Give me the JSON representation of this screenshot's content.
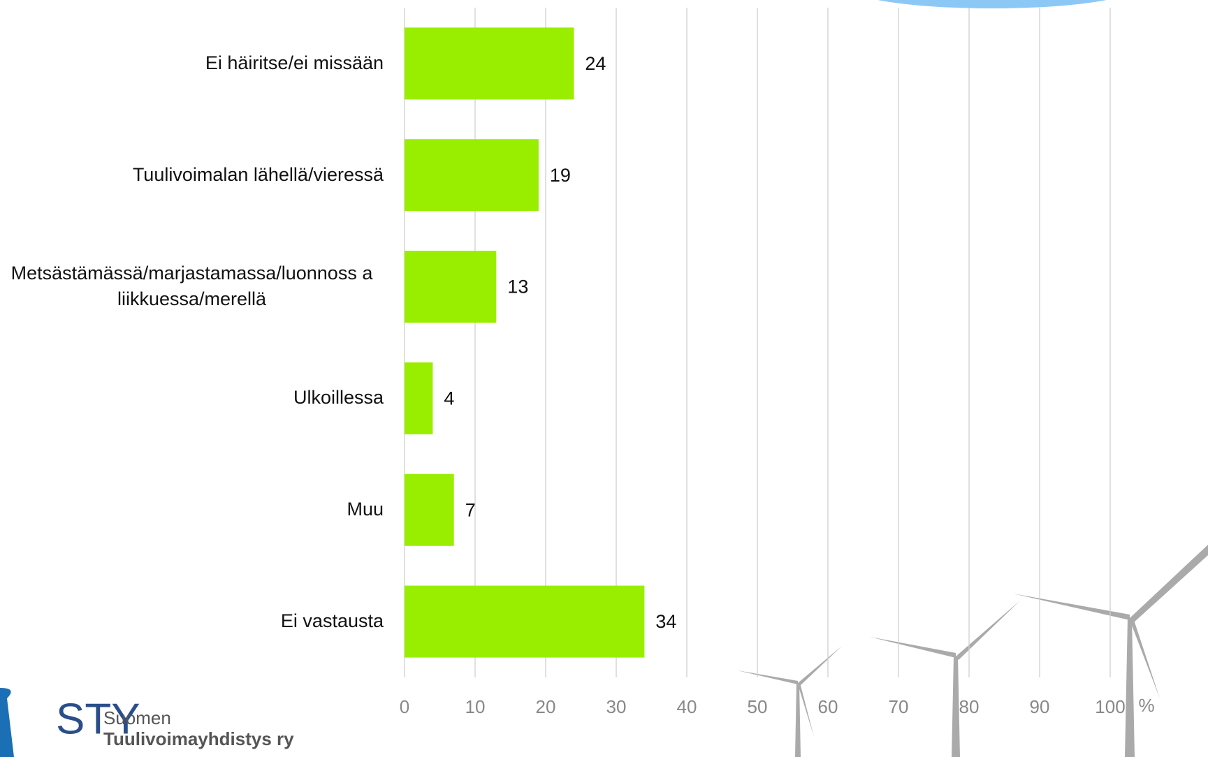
{
  "chart_data": {
    "type": "bar",
    "orientation": "horizontal",
    "categories": [
      "Ei häiritse/ei missään",
      "Tuulivoimalan lähellä/vieressä",
      "Metsästämässä/marjastamassa/luonnoss a liikkuessa/merellä",
      "Ulkoillessa",
      "Muu",
      "Ei vastausta"
    ],
    "values": [
      24,
      19,
      13,
      4,
      7,
      34
    ],
    "color": "#99ee00",
    "xlim": [
      0,
      100
    ],
    "xticks": [
      0,
      10,
      20,
      30,
      40,
      50,
      60,
      70,
      80,
      90,
      100
    ],
    "grid": true,
    "x_unit_label": "%"
  },
  "logo": {
    "abbr": "STY",
    "line1": "Suomen",
    "line2": "Tuulivoimayhdistys ry"
  }
}
